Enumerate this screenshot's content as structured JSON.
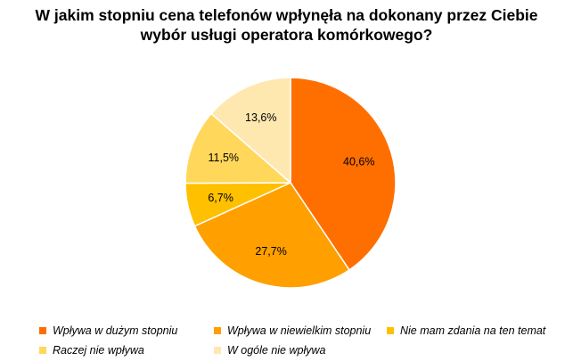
{
  "chart_data": {
    "type": "pie",
    "title_lines": [
      "W jakim stopniu cena telefonów wpłynęła na dokonany przez Ciebie",
      "wybór usługi operatora komórkowego?"
    ],
    "slices": [
      {
        "name": "Wpływa w dużym stopniu",
        "value": 40.6,
        "label": "40,6%",
        "color": "#FF6F00"
      },
      {
        "name": "Wpływa w niewielkim stopniu",
        "value": 27.7,
        "label": "27,7%",
        "color": "#FF9F00"
      },
      {
        "name": "Nie mam zdania na ten temat",
        "value": 6.7,
        "label": "6,7%",
        "color": "#FFC000"
      },
      {
        "name": "Raczej nie wpływa",
        "value": 11.5,
        "label": "11,5%",
        "color": "#FFD75A"
      },
      {
        "name": "W ogóle nie wpływa",
        "value": 13.6,
        "label": "13,6%",
        "color": "#FFE8B0"
      }
    ],
    "legend_position": "bottom",
    "start_angle": "12 o'clock, clockwise"
  }
}
